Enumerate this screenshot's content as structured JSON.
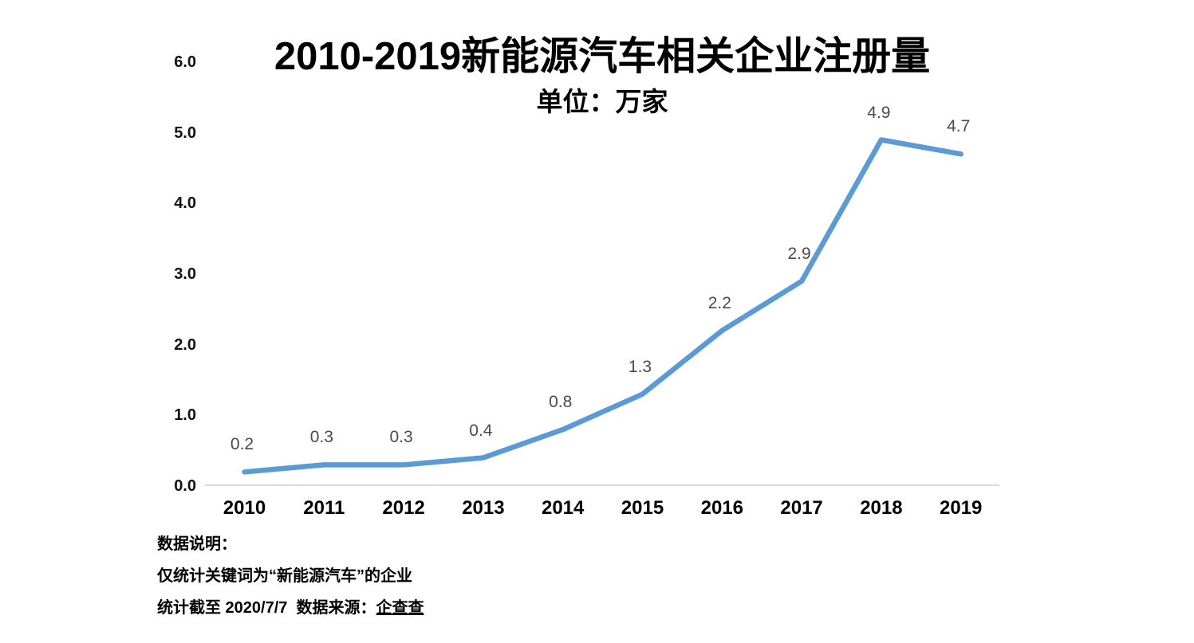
{
  "chart_data": {
    "type": "line",
    "title": "2010-2019新能源汽车相关企业注册量",
    "subtitle": "单位：万家",
    "categories": [
      "2010",
      "2011",
      "2012",
      "2013",
      "2014",
      "2015",
      "2016",
      "2017",
      "2018",
      "2019"
    ],
    "values": [
      0.2,
      0.3,
      0.3,
      0.4,
      0.8,
      1.3,
      2.2,
      2.9,
      4.9,
      4.7
    ],
    "data_labels": [
      "0.2",
      "0.3",
      "0.3",
      "0.4",
      "0.8",
      "1.3",
      "2.2",
      "2.9",
      "4.9",
      "4.7"
    ],
    "y_tick_labels": [
      "0.0",
      "1.0",
      "2.0",
      "3.0",
      "4.0",
      "5.0",
      "6.0"
    ],
    "ylim": [
      0.0,
      6.0
    ],
    "xlabel": "",
    "ylabel": "",
    "grid": false,
    "legend": "none",
    "colors": {
      "line": "#5B9BD5",
      "axis_line": "#D9D9D9",
      "data_label": "#4A4A4A",
      "tick_label": "#111111",
      "title": "#000000"
    }
  },
  "footer": {
    "heading": "数据说明：",
    "scope_note": "仅统计关键词为“新能源汽车”的企业",
    "cutoff_prefix": "统计截至 2020/7/7  数据来源：",
    "source": "企查查"
  }
}
